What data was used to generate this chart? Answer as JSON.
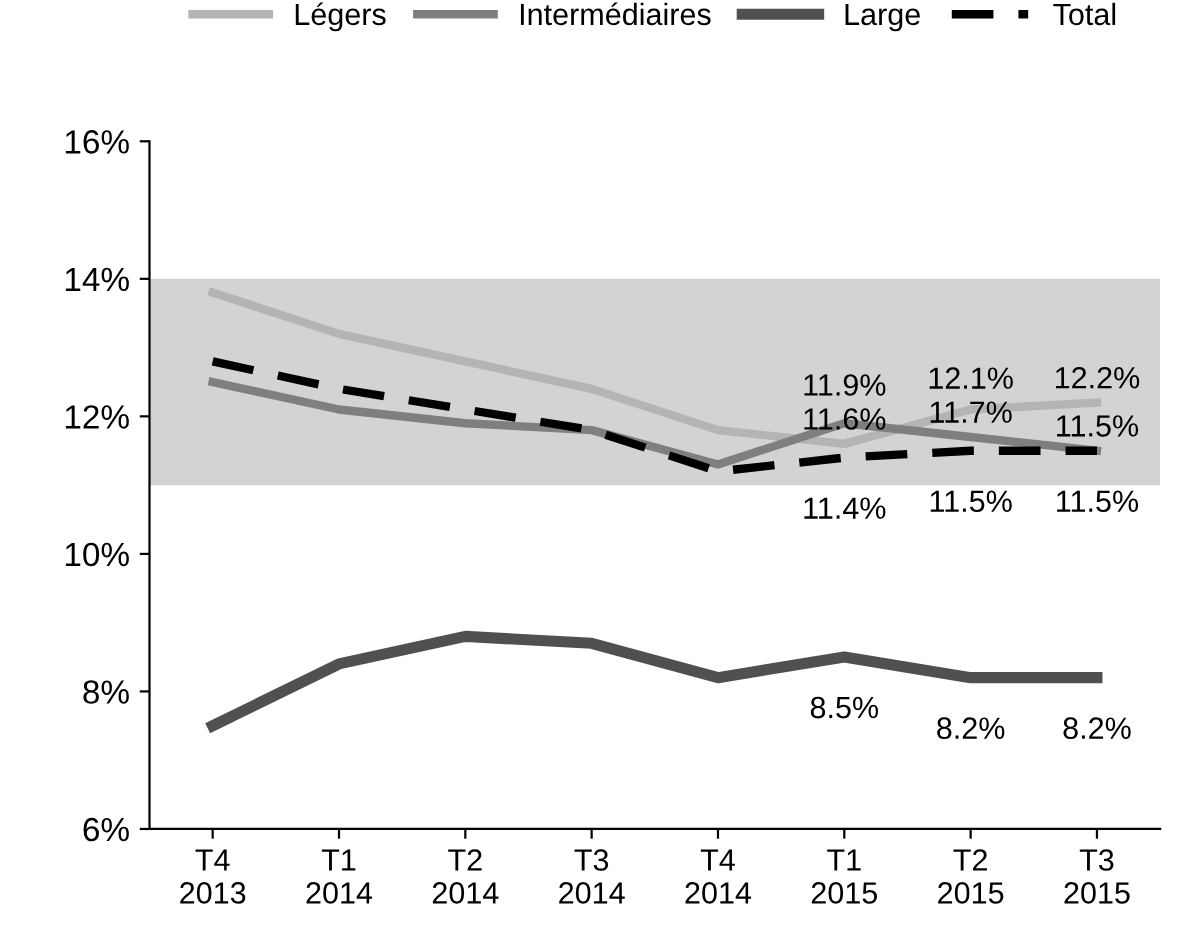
{
  "chart_data": {
    "type": "line",
    "categories": [
      "T4\n2013",
      "T1\n2014",
      "T2\n2014",
      "T3\n2014",
      "T4\n2014",
      "T1\n2015",
      "T2\n2015",
      "T3\n2015"
    ],
    "series": [
      {
        "name": "Légers",
        "color": "#b4b4b4",
        "line_style": "solid",
        "values": [
          13.8,
          13.2,
          12.8,
          12.4,
          11.8,
          11.6,
          12.1,
          12.2
        ],
        "value_labels": [
          null,
          null,
          null,
          null,
          null,
          "11.6%",
          "12.1%",
          "12.2%"
        ]
      },
      {
        "name": "Intermédiaires",
        "color": "#7f7f7f",
        "line_style": "solid",
        "values": [
          12.5,
          12.1,
          11.9,
          11.8,
          11.3,
          11.9,
          11.7,
          11.5
        ],
        "value_labels": [
          null,
          null,
          null,
          null,
          null,
          "11.9%",
          "11.7%",
          "11.5%"
        ]
      },
      {
        "name": "Large",
        "color": "#505050",
        "line_style": "solid",
        "values": [
          7.5,
          8.4,
          8.8,
          8.7,
          8.2,
          8.5,
          8.2,
          8.2
        ],
        "value_labels": [
          null,
          null,
          null,
          null,
          null,
          "8.5%",
          "8.2%",
          "8.2%"
        ]
      },
      {
        "name": "Total",
        "color": "#000000",
        "line_style": "dashed",
        "values": [
          12.8,
          12.4,
          12.1,
          11.8,
          11.2,
          11.4,
          11.5,
          11.5
        ],
        "value_labels": [
          null,
          null,
          null,
          null,
          null,
          "11.4%",
          "11.5%",
          "11.5%"
        ]
      }
    ],
    "bands": [
      {
        "axis": "y",
        "from": 11,
        "to": 14,
        "color": "#d3d3d3"
      }
    ],
    "ylim": [
      6,
      16
    ],
    "yticks": [
      {
        "value": 6,
        "label": "6%"
      },
      {
        "value": 8,
        "label": "8%"
      },
      {
        "value": 10,
        "label": "10%"
      },
      {
        "value": 12,
        "label": "12%"
      },
      {
        "value": 14,
        "label": "14%"
      },
      {
        "value": 16,
        "label": "16%"
      }
    ],
    "grid": false,
    "legend": "top",
    "marker": "none"
  }
}
